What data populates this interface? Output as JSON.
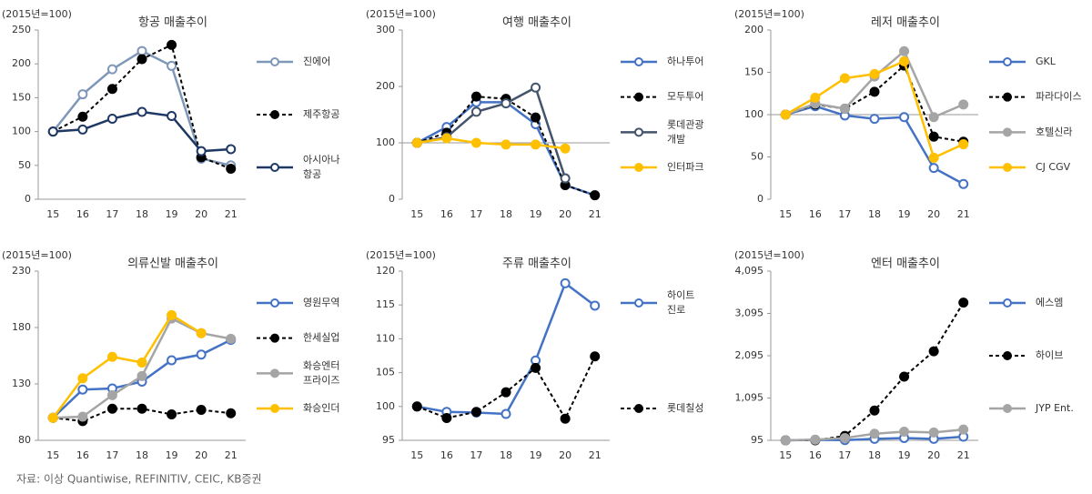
{
  "chart_data": [
    {
      "type": "line",
      "unit_label": "(2015년=100)",
      "title": "항공 매출추이",
      "categories": [
        "15",
        "16",
        "17",
        "18",
        "19",
        "20",
        "21"
      ],
      "ylim": [
        0,
        250
      ],
      "yticks": [
        0,
        50,
        100,
        150,
        200,
        250
      ],
      "xaxis_at": 0,
      "series": [
        {
          "name": "진에어",
          "color": "#7f97b8",
          "dashed": false,
          "marker": "open",
          "values": [
            100,
            155,
            192,
            219,
            197,
            60,
            50
          ]
        },
        {
          "name": "제주항공",
          "color": "#000000",
          "dashed": true,
          "marker": "filled",
          "values": [
            100,
            122,
            163,
            207,
            228,
            62,
            45
          ]
        },
        {
          "name": "아시아나\n항공",
          "color": "#1f3864",
          "dashed": false,
          "marker": "open",
          "values": [
            100,
            103,
            119,
            129,
            123,
            71,
            74
          ]
        }
      ]
    },
    {
      "type": "line",
      "unit_label": "(2015년=100)",
      "title": "여행 매출추이",
      "categories": [
        "15",
        "16",
        "17",
        "18",
        "19",
        "20",
        "21"
      ],
      "ylim": [
        0,
        300
      ],
      "yticks": [
        0,
        100,
        200,
        300
      ],
      "xaxis_at": 100,
      "series": [
        {
          "name": "하나투어",
          "color": "#4472c4",
          "dashed": false,
          "marker": "open",
          "values": [
            100,
            128,
            172,
            172,
            133,
            25,
            7
          ]
        },
        {
          "name": "모두투어",
          "color": "#000000",
          "dashed": true,
          "marker": "filled",
          "values": [
            100,
            118,
            182,
            178,
            145,
            25,
            7
          ]
        },
        {
          "name": "롯데관광\n개발",
          "color": "#44546a",
          "dashed": false,
          "marker": "open",
          "values": [
            100,
            110,
            155,
            170,
            198,
            37,
            null
          ]
        },
        {
          "name": "인터파크",
          "color": "#ffc000",
          "dashed": false,
          "marker": "filled",
          "values": [
            100,
            108,
            100,
            97,
            97,
            90,
            null
          ]
        }
      ]
    },
    {
      "type": "line",
      "unit_label": "(2015년=100)",
      "title": "레저 매출추이",
      "categories": [
        "15",
        "16",
        "17",
        "18",
        "19",
        "20",
        "21"
      ],
      "ylim": [
        0,
        200
      ],
      "yticks": [
        0,
        50,
        100,
        150,
        200
      ],
      "xaxis_at": 100,
      "series": [
        {
          "name": "GKL",
          "color": "#4472c4",
          "dashed": false,
          "marker": "open",
          "values": [
            100,
            110,
            99,
            95,
            97,
            37,
            18
          ]
        },
        {
          "name": "파라다이스",
          "color": "#000000",
          "dashed": true,
          "marker": "filled",
          "values": [
            100,
            112,
            107,
            127,
            158,
            74,
            68
          ]
        },
        {
          "name": "호텔신라",
          "color": "#a5a5a5",
          "dashed": false,
          "marker": "filled",
          "values": [
            100,
            113,
            107,
            145,
            175,
            97,
            112
          ]
        },
        {
          "name": "CJ CGV",
          "color": "#ffc000",
          "dashed": false,
          "marker": "filled",
          "values": [
            100,
            120,
            143,
            148,
            163,
            49,
            65
          ]
        }
      ]
    },
    {
      "type": "line",
      "unit_label": "(2015년=100)",
      "title": "의류신발 매출추이",
      "categories": [
        "15",
        "16",
        "17",
        "18",
        "19",
        "20",
        "21"
      ],
      "ylim": [
        80,
        230
      ],
      "yticks": [
        80,
        130,
        180,
        230
      ],
      "xaxis_at": 80,
      "series": [
        {
          "name": "영원무역",
          "color": "#4472c4",
          "dashed": false,
          "marker": "open",
          "values": [
            100,
            125,
            126,
            132,
            151,
            156,
            169
          ]
        },
        {
          "name": "한세실업",
          "color": "#000000",
          "dashed": true,
          "marker": "filled",
          "values": [
            100,
            97,
            108,
            108,
            103,
            107,
            104
          ]
        },
        {
          "name": "화승엔터\n프라이즈",
          "color": "#a5a5a5",
          "dashed": false,
          "marker": "filled",
          "values": [
            100,
            101,
            120,
            137,
            188,
            175,
            170
          ]
        },
        {
          "name": "화승인더",
          "color": "#ffc000",
          "dashed": false,
          "marker": "filled",
          "values": [
            100,
            135,
            154,
            149,
            191,
            175,
            null
          ]
        }
      ]
    },
    {
      "type": "line",
      "unit_label": "(2015년=100)",
      "title": "주류 매출추이",
      "categories": [
        "15",
        "16",
        "17",
        "18",
        "19",
        "20",
        "21"
      ],
      "ylim": [
        95,
        120
      ],
      "yticks": [
        95,
        100,
        105,
        110,
        115,
        120
      ],
      "xaxis_at": 95,
      "series": [
        {
          "name": "하이트\n진로",
          "color": "#4472c4",
          "dashed": false,
          "marker": "open",
          "values": [
            100,
            99.2,
            99.1,
            98.9,
            106.8,
            118.2,
            114.9
          ]
        },
        {
          "name": "롯데칠성",
          "color": "#000000",
          "dashed": true,
          "marker": "filled",
          "values": [
            100,
            98.3,
            99.2,
            102.1,
            105.7,
            98.2,
            107.4
          ]
        }
      ]
    },
    {
      "type": "line",
      "unit_label": "(2015년=100)",
      "title": "엔터 매출추이",
      "categories": [
        "15",
        "16",
        "17",
        "18",
        "19",
        "20",
        "21"
      ],
      "ylim": [
        95,
        4095
      ],
      "yticks": [
        95,
        {
          "value": 1095,
          "label": "1,095"
        },
        {
          "value": 2095,
          "label": "2,095"
        },
        {
          "value": 3095,
          "label": "3,095"
        },
        {
          "value": 4095,
          "label": "4,095"
        }
      ],
      "xaxis_at": 95,
      "series": [
        {
          "name": "에스엠",
          "color": "#4472c4",
          "dashed": false,
          "marker": "open",
          "values": [
            95,
            105,
            100,
            130,
            150,
            130,
            180
          ]
        },
        {
          "name": "하이브",
          "color": "#000000",
          "dashed": true,
          "marker": "filled",
          "values": [
            95,
            95,
            200,
            800,
            1600,
            2200,
            3350
          ]
        },
        {
          "name": "JYP Ent.",
          "color": "#a5a5a5",
          "dashed": false,
          "marker": "filled",
          "values": [
            95,
            110,
            150,
            250,
            300,
            280,
            350
          ]
        }
      ]
    }
  ],
  "source": "자료: 이상 Quantiwise, REFINITIV, CEIC, KB증권"
}
